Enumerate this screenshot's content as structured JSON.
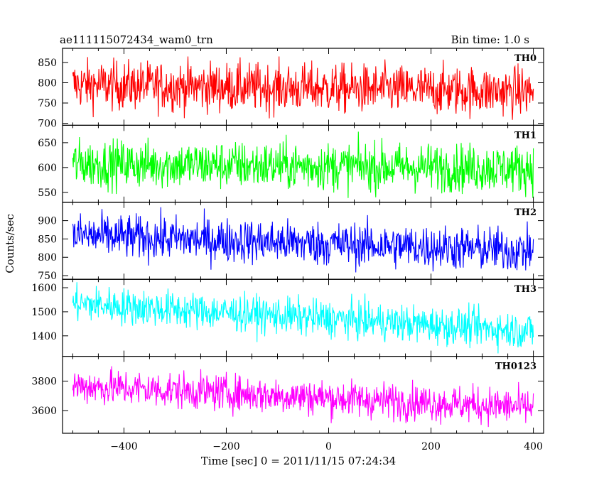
{
  "chart_data": {
    "type": "line",
    "title": "ae111115072434_wam0_trn",
    "subtitle": "Bin time: 1.0 s",
    "xlabel": "Time [sec] 0 = 2011/11/15 07:24:34",
    "ylabel": "Counts/sec",
    "xlim": [
      -520,
      420
    ],
    "x_ticks": [
      -400,
      -200,
      0,
      200,
      400
    ],
    "grid": false,
    "series_x_range": [
      -500,
      400
    ],
    "series": [
      {
        "name": "TH0",
        "color": "#ff0000",
        "ylim": [
          695,
          885
        ],
        "y_ticks": [
          700,
          750,
          800,
          850
        ],
        "mean_start": 795,
        "mean_end": 778,
        "spread": 30
      },
      {
        "name": "TH1",
        "color": "#00ff00",
        "ylim": [
          530,
          685
        ],
        "y_ticks": [
          550,
          600,
          650
        ],
        "mean_start": 608,
        "mean_end": 598,
        "spread": 24
      },
      {
        "name": "TH2",
        "color": "#0000ff",
        "ylim": [
          740,
          950
        ],
        "y_ticks": [
          750,
          800,
          850,
          900
        ],
        "mean_start": 860,
        "mean_end": 818,
        "spread": 30
      },
      {
        "name": "TH3",
        "color": "#00ffff",
        "ylim": [
          1315,
          1635
        ],
        "y_ticks": [
          1400,
          1500,
          1600
        ],
        "mean_start": 1535,
        "mean_end": 1420,
        "spread": 38
      },
      {
        "name": "TH0123",
        "color": "#ff00ff",
        "ylim": [
          3445,
          3970
        ],
        "y_ticks": [
          3600,
          3800
        ],
        "mean_start": 3770,
        "mean_end": 3620,
        "spread": 62
      }
    ]
  }
}
